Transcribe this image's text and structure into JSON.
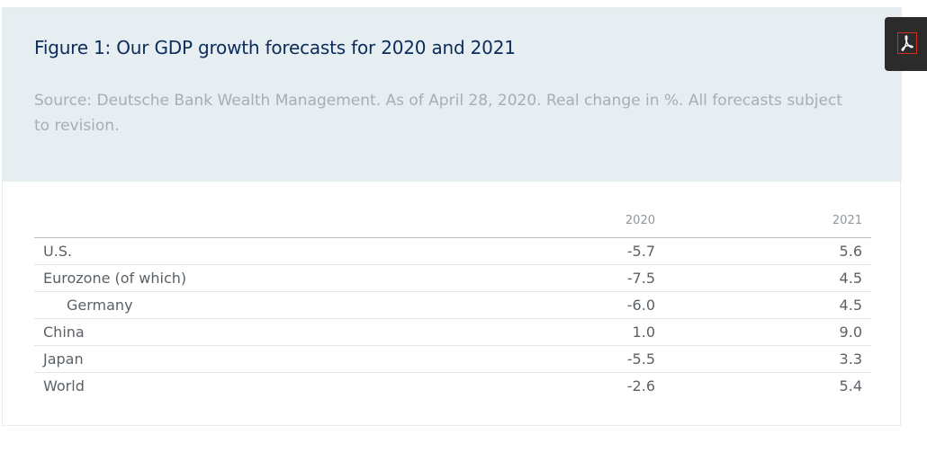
{
  "figure": {
    "title": "Figure 1: Our GDP growth forecasts for 2020 and 2021",
    "source": "Source: Deutsche Bank Wealth Management. As of April 28, 2020. Real change in %. All forecasts subject to revision."
  },
  "table": {
    "headers": [
      "",
      "2020",
      "2021"
    ],
    "rows": [
      {
        "country": "U.S.",
        "y2020": "-5.7",
        "y2021": "5.6"
      },
      {
        "country": "Eurozone (of which)",
        "y2020": "-7.5",
        "y2021": "4.5"
      },
      {
        "country": "Germany",
        "y2020": "-6.0",
        "y2021": "4.5"
      },
      {
        "country": "China",
        "y2020": "1.0",
        "y2021": "9.0"
      },
      {
        "country": "Japan",
        "y2020": "-5.5",
        "y2021": "3.3"
      },
      {
        "country": "World",
        "y2020": "-2.6",
        "y2021": "5.4"
      }
    ]
  },
  "pdf_button": {
    "icon": "adobe-pdf-icon",
    "icon_color": "#d2311f"
  }
}
